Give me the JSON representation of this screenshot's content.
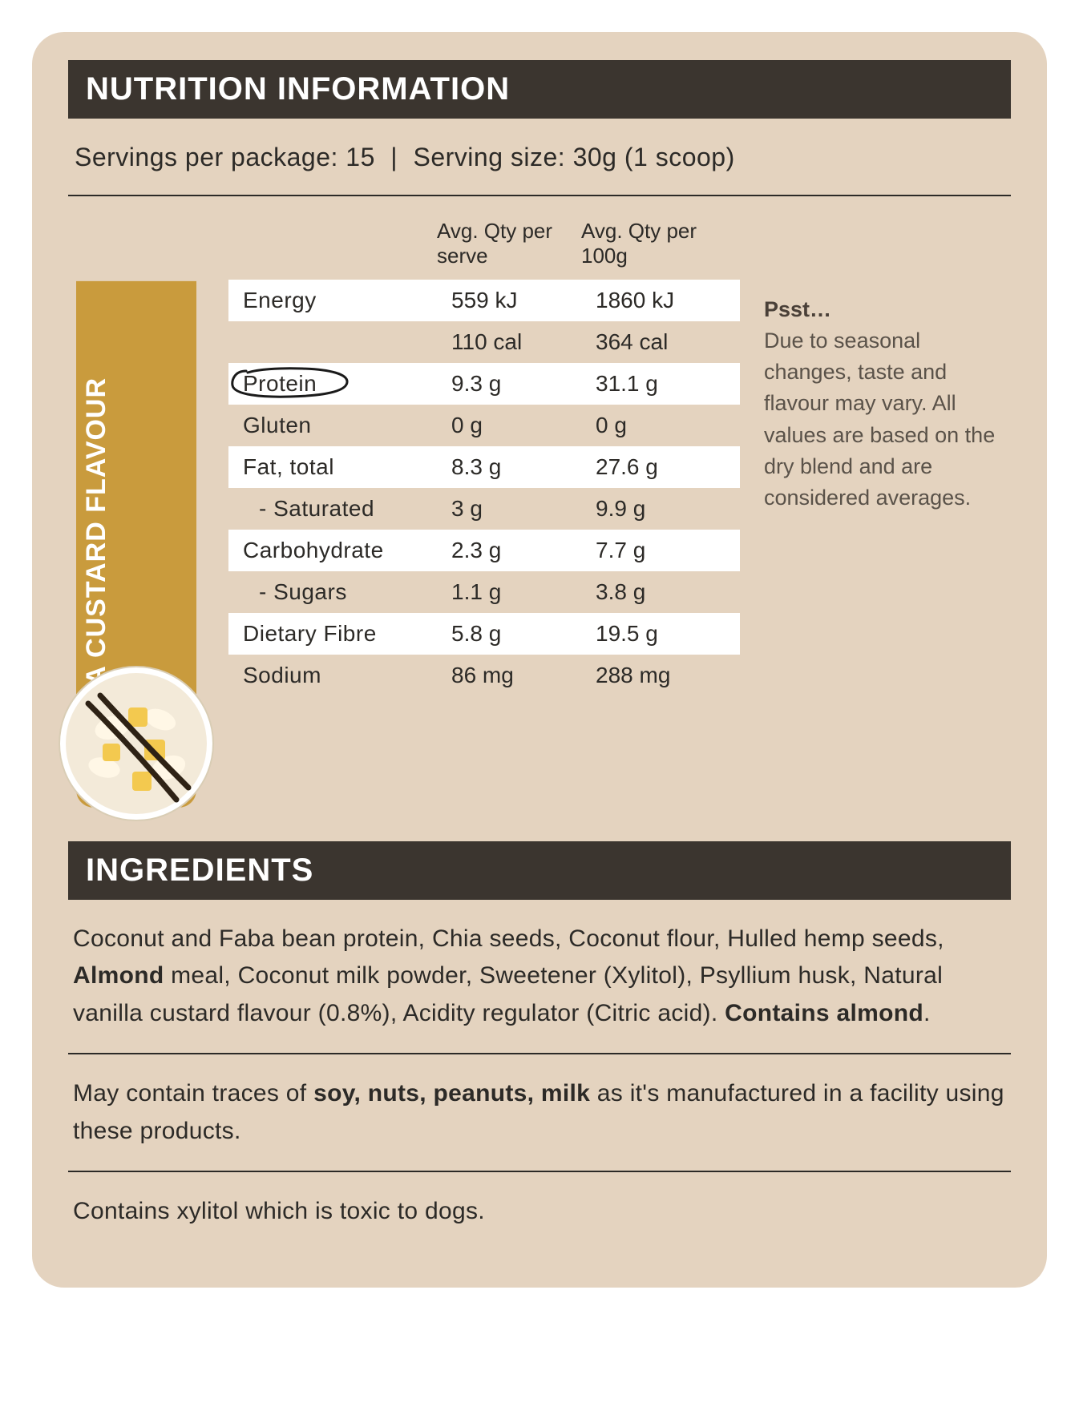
{
  "colors": {
    "panel_bg": "#e4d3bf",
    "heading_bg": "#3b352f",
    "heading_text": "#ffffff",
    "body_text": "#2c2a27",
    "note_text": "#5a5249",
    "flavour_tab_bg": "#c99b3d",
    "row_stripe": "#ffffff",
    "rule": "#2c2a27"
  },
  "typography": {
    "heading_fontsize": 40,
    "body_fontsize": 30,
    "table_fontsize": 28,
    "table_header_fontsize": 26,
    "note_fontsize": 27
  },
  "headings": {
    "nutrition": "NUTRITION INFORMATION",
    "ingredients": "INGREDIENTS"
  },
  "serving": {
    "per_package_label": "Servings per package:",
    "per_package_value": "15",
    "size_label": "Serving size:",
    "size_value": "30g (1 scoop)"
  },
  "flavour_label": "VANILLA CUSTARD FLAVOUR",
  "table": {
    "col1_header": "Avg. Qty per serve",
    "col2_header": "Avg. Qty per 100g",
    "rows": [
      {
        "label": "Energy",
        "serve": "559 kJ",
        "per100": "1860 kJ",
        "striped": true,
        "indent": false,
        "circled": false
      },
      {
        "label": "",
        "serve": "110 cal",
        "per100": "364 cal",
        "striped": false,
        "indent": false,
        "circled": false
      },
      {
        "label": "Protein",
        "serve": "9.3 g",
        "per100": "31.1 g",
        "striped": true,
        "indent": false,
        "circled": true
      },
      {
        "label": "Gluten",
        "serve": "0 g",
        "per100": "0 g",
        "striped": false,
        "indent": false,
        "circled": false
      },
      {
        "label": "Fat, total",
        "serve": "8.3 g",
        "per100": "27.6 g",
        "striped": true,
        "indent": false,
        "circled": false
      },
      {
        "label": "- Saturated",
        "serve": "3 g",
        "per100": "9.9 g",
        "striped": false,
        "indent": true,
        "circled": false
      },
      {
        "label": "Carbohydrate",
        "serve": "2.3 g",
        "per100": "7.7 g",
        "striped": true,
        "indent": false,
        "circled": false
      },
      {
        "label": "- Sugars",
        "serve": "1.1 g",
        "per100": "3.8 g",
        "striped": false,
        "indent": true,
        "circled": false
      },
      {
        "label": "Dietary Fibre",
        "serve": "5.8 g",
        "per100": "19.5 g",
        "striped": true,
        "indent": false,
        "circled": false
      },
      {
        "label": "Sodium",
        "serve": "86 mg",
        "per100": "288 mg",
        "striped": false,
        "indent": false,
        "circled": false
      }
    ]
  },
  "side_note": {
    "psst": "Psst…",
    "body": "Due to seasonal changes, taste and flavour may vary. All values are based on the dry blend and are considered averages."
  },
  "ingredients": {
    "pre_almond": "Coconut and Faba bean protein, Chia seeds, Coconut flour, Hulled hemp seeds, ",
    "almond": "Almond",
    "post_almond": " meal, Coconut milk powder, Sweetener (Xylitol), Psyllium husk, Natural vanilla custard flavour (0.8%), Acidity regulator (Citric acid). ",
    "contains_almond": "Contains almond",
    "period": "."
  },
  "allergen": {
    "pre": "May contain traces of ",
    "bold": "soy, nuts, peanuts, milk",
    "post": " as it's manufactured in a facility using these products."
  },
  "xylitol_note": "Contains xylitol which is toxic to dogs.",
  "bowl": {
    "bowl_fill": "#f3ead9",
    "bowl_stroke": "#d9cdb5",
    "flake_color": "#fff7e6",
    "custard_color": "#f3c94f",
    "vanilla_pod_color": "#2e2215"
  }
}
